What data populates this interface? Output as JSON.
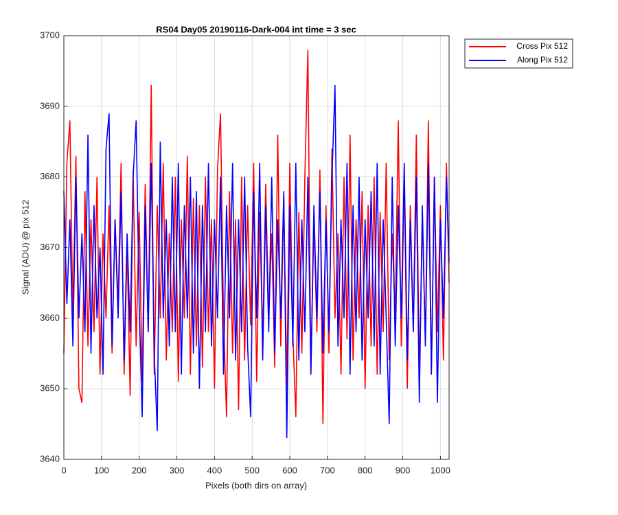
{
  "chart_data": {
    "type": "line",
    "title": "RS04 Day05 20190116-Dark-004 int time = 3 sec",
    "xlabel": "Pixels (both dirs on array)",
    "ylabel": "Signal (ADU) @ pix 512",
    "x": [
      0,
      8,
      16,
      24,
      32,
      40,
      48,
      56,
      64,
      72,
      80,
      88,
      96,
      104,
      112,
      120,
      128,
      136,
      144,
      152,
      160,
      168,
      176,
      184,
      192,
      200,
      208,
      216,
      224,
      232,
      240,
      248,
      256,
      264,
      272,
      280,
      288,
      296,
      304,
      312,
      320,
      328,
      336,
      344,
      352,
      360,
      368,
      376,
      384,
      392,
      400,
      408,
      416,
      424,
      432,
      440,
      448,
      456,
      464,
      472,
      480,
      488,
      496,
      504,
      512,
      520,
      528,
      536,
      544,
      552,
      560,
      568,
      576,
      584,
      592,
      600,
      608,
      616,
      624,
      632,
      640,
      648,
      656,
      664,
      672,
      680,
      688,
      696,
      704,
      712,
      720,
      728,
      736,
      744,
      752,
      760,
      768,
      776,
      784,
      792,
      800,
      808,
      816,
      824,
      832,
      840,
      848,
      856,
      864,
      872,
      880,
      888,
      896,
      904,
      912,
      920,
      928,
      936,
      944,
      952,
      960,
      968,
      976,
      984,
      992,
      1000,
      1008,
      1016,
      1023
    ],
    "series": [
      {
        "name": "Cross Pix 512",
        "color": "#ff0000",
        "values": [
          3655,
          3682,
          3688,
          3660,
          3683,
          3650,
          3648,
          3678,
          3656,
          3674,
          3658,
          3680,
          3652,
          3672,
          3660,
          3676,
          3655,
          3674,
          3662,
          3682,
          3652,
          3670,
          3649,
          3681,
          3656,
          3675,
          3651,
          3679,
          3658,
          3693,
          3652,
          3676,
          3660,
          3682,
          3654,
          3672,
          3658,
          3680,
          3651,
          3674,
          3660,
          3683,
          3652,
          3677,
          3656,
          3676,
          3653,
          3680,
          3658,
          3674,
          3650,
          3681,
          3689,
          3660,
          3646,
          3678,
          3655,
          3674,
          3647,
          3680,
          3654,
          3676,
          3659,
          3682,
          3651,
          3675,
          3657,
          3679,
          3660,
          3672,
          3653,
          3686,
          3656,
          3677,
          3650,
          3682,
          3658,
          3646,
          3675,
          3655,
          3680,
          3698,
          3652,
          3674,
          3658,
          3681,
          3645,
          3676,
          3655,
          3684,
          3660,
          3672,
          3652,
          3680,
          3657,
          3686,
          3654,
          3674,
          3660,
          3678,
          3650,
          3676,
          3656,
          3680,
          3652,
          3675,
          3658,
          3682,
          3654,
          3672,
          3660,
          3688,
          3656,
          3680,
          3650,
          3676,
          3658,
          3686,
          3652,
          3674,
          3657,
          3688,
          3652,
          3680,
          3658,
          3676,
          3654,
          3682,
          3665
        ]
      },
      {
        "name": "Along Pix 512",
        "color": "#0000ff",
        "values": [
          3678,
          3662,
          3674,
          3656,
          3680,
          3660,
          3672,
          3658,
          3686,
          3655,
          3676,
          3660,
          3670,
          3652,
          3684,
          3689,
          3656,
          3674,
          3660,
          3678,
          3654,
          3672,
          3658,
          3680,
          3688,
          3662,
          3646,
          3676,
          3658,
          3682,
          3655,
          3644,
          3685,
          3660,
          3674,
          3656,
          3680,
          3658,
          3682,
          3652,
          3676,
          3660,
          3680,
          3655,
          3678,
          3650,
          3676,
          3658,
          3682,
          3656,
          3674,
          3660,
          3680,
          3652,
          3676,
          3660,
          3682,
          3654,
          3674,
          3658,
          3680,
          3656,
          3646,
          3678,
          3660,
          3682,
          3654,
          3676,
          3658,
          3680,
          3655,
          3674,
          3660,
          3678,
          3643,
          3676,
          3656,
          3682,
          3654,
          3674,
          3658,
          3680,
          3652,
          3676,
          3660,
          3678,
          3655,
          3674,
          3658,
          3680,
          3693,
          3656,
          3674,
          3660,
          3682,
          3652,
          3676,
          3658,
          3680,
          3654,
          3674,
          3660,
          3678,
          3656,
          3682,
          3652,
          3674,
          3660,
          3645,
          3680,
          3656,
          3676,
          3660,
          3682,
          3654,
          3674,
          3658,
          3680,
          3648,
          3676,
          3656,
          3682,
          3652,
          3680,
          3648,
          3674,
          3660,
          3680,
          3668
        ]
      }
    ],
    "xlim": [
      0,
      1023
    ],
    "xticks": [
      0,
      100,
      200,
      300,
      400,
      500,
      600,
      700,
      800,
      900,
      1000
    ],
    "ylim": [
      3640,
      3700
    ],
    "yticks": [
      3640,
      3650,
      3660,
      3670,
      3680,
      3690,
      3700
    ],
    "grid": true,
    "legend": "northeastoutside"
  }
}
